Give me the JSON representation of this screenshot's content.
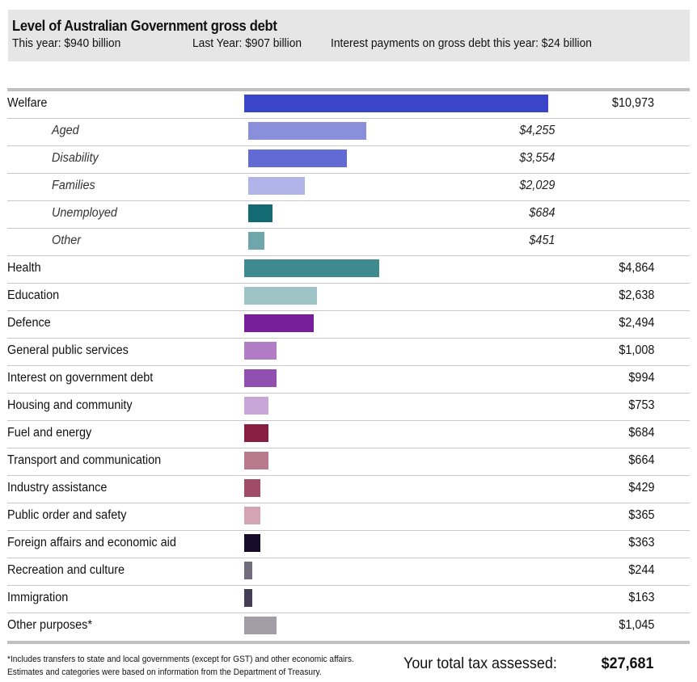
{
  "header": {
    "title": "Level of Australian Government gross debt",
    "this_year": "This year: $940 billion",
    "last_year": "Last Year: $907 billion",
    "interest": "Interest payments on gross debt this year: $24 billion"
  },
  "chart_data": {
    "type": "bar",
    "orientation": "horizontal",
    "title": "Level of Australian Government gross debt",
    "xlabel": "",
    "ylabel": "",
    "grid": false,
    "legend": "none",
    "rows": [
      {
        "label": "Welfare",
        "value": 10973,
        "display": "$10,973",
        "sub": false,
        "color": "#3b45c8"
      },
      {
        "label": "Aged",
        "value": 4255,
        "display": "$4,255",
        "sub": true,
        "color": "#8a8fdc"
      },
      {
        "label": "Disability",
        "value": 3554,
        "display": "$3,554",
        "sub": true,
        "color": "#626ad4"
      },
      {
        "label": "Families",
        "value": 2029,
        "display": "$2,029",
        "sub": true,
        "color": "#b0b4e8"
      },
      {
        "label": "Unemployed",
        "value": 684,
        "display": "$684",
        "sub": true,
        "color": "#146a72"
      },
      {
        "label": "Other",
        "value": 451,
        "display": "$451",
        "sub": true,
        "color": "#6fa6ab"
      },
      {
        "label": "Health",
        "value": 4864,
        "display": "$4,864",
        "sub": false,
        "color": "#3e8a8e"
      },
      {
        "label": "Education",
        "value": 2638,
        "display": "$2,638",
        "sub": false,
        "color": "#9fc4c6"
      },
      {
        "label": "Defence",
        "value": 2494,
        "display": "$2,494",
        "sub": false,
        "color": "#761e9c"
      },
      {
        "label": "General public services",
        "value": 1008,
        "display": "$1,008",
        "sub": false,
        "color": "#b07cc4"
      },
      {
        "label": "Interest on government debt",
        "value": 994,
        "display": "$994",
        "sub": false,
        "color": "#914fb0"
      },
      {
        "label": "Housing and community",
        "value": 753,
        "display": "$753",
        "sub": false,
        "color": "#c9a6d8"
      },
      {
        "label": "Fuel and energy",
        "value": 684,
        "display": "$684",
        "sub": false,
        "color": "#8a1e42"
      },
      {
        "label": "Transport and communication",
        "value": 664,
        "display": "$664",
        "sub": false,
        "color": "#b97a8d"
      },
      {
        "label": "Industry assistance",
        "value": 429,
        "display": "$429",
        "sub": false,
        "color": "#a04b68"
      },
      {
        "label": "Public order and safety",
        "value": 365,
        "display": "$365",
        "sub": false,
        "color": "#d3a4b3"
      },
      {
        "label": "Foreign affairs and economic aid",
        "value": 363,
        "display": "$363",
        "sub": false,
        "color": "#170d2b"
      },
      {
        "label": "Recreation and culture",
        "value": 244,
        "display": "$244",
        "sub": false,
        "color": "#716c7c"
      },
      {
        "label": "Immigration",
        "value": 163,
        "display": "$163",
        "sub": false,
        "color": "#433d55"
      },
      {
        "label": "Other purposes*",
        "value": 1045,
        "display": "$1,045",
        "sub": false,
        "color": "#a19ea8"
      }
    ]
  },
  "footer": {
    "footnote_line1": "*Includes transfers to state and local governments (except for GST) and other economic affairs.",
    "footnote_line2": "Estimates and categories were based on information from the Department of Treasury.",
    "total_label": "Your total tax assessed:",
    "total_value": "$27,681"
  }
}
